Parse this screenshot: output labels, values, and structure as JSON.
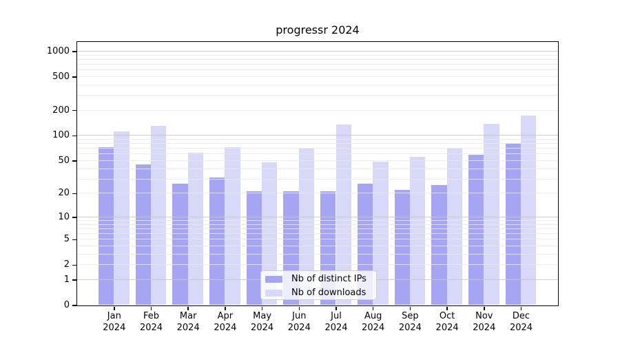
{
  "title": "progressr 2024",
  "chart_data": {
    "type": "bar",
    "title": "progressr 2024",
    "categories": [
      "Jan",
      "Feb",
      "Mar",
      "Apr",
      "May",
      "Jun",
      "Jul",
      "Aug",
      "Sep",
      "Oct",
      "Nov",
      "Dec"
    ],
    "x_tick_year": "2024",
    "series": [
      {
        "name": "Nb of distinct IPs",
        "color": "#a5a5f3",
        "values": [
          72,
          45,
          26,
          31,
          21,
          21,
          21,
          26,
          22,
          25,
          59,
          81
        ]
      },
      {
        "name": "Nb of downloads",
        "color": "#d8d8f9",
        "values": [
          112,
          131,
          62,
          72,
          48,
          70,
          135,
          49,
          56,
          71,
          137,
          174
        ]
      }
    ],
    "y_scale": "log(1+x)",
    "ylim": [
      0,
      1290
    ],
    "y_ticks": [
      0,
      1,
      2,
      5,
      10,
      20,
      50,
      100,
      200,
      500,
      1000
    ],
    "y_major_gridlines": [
      1,
      10,
      100,
      1000
    ],
    "y_minor_gridlines": [
      2,
      3,
      4,
      5,
      6,
      7,
      8,
      9,
      20,
      30,
      40,
      50,
      60,
      70,
      80,
      90,
      200,
      300,
      400,
      500,
      600,
      700,
      800,
      900
    ],
    "grid": true,
    "legend_position": "lower center"
  },
  "legend": {
    "items": [
      {
        "label": "Nb of distinct IPs",
        "color": "#a5a5f3"
      },
      {
        "label": "Nb of downloads",
        "color": "#d8d8f9"
      }
    ]
  },
  "colors": {
    "background": "#ffffff",
    "bar_distinct_ips": "#a5a5f3",
    "bar_downloads": "#d8d8f9",
    "grid_major": "rgba(200,200,200,0.9)",
    "grid_minor": "rgba(233,233,233,0.85)",
    "axis": "#000000",
    "text": "#000000",
    "legend_background": "rgba(255,255,255,0.8)",
    "legend_border": "#d0d0d0"
  }
}
